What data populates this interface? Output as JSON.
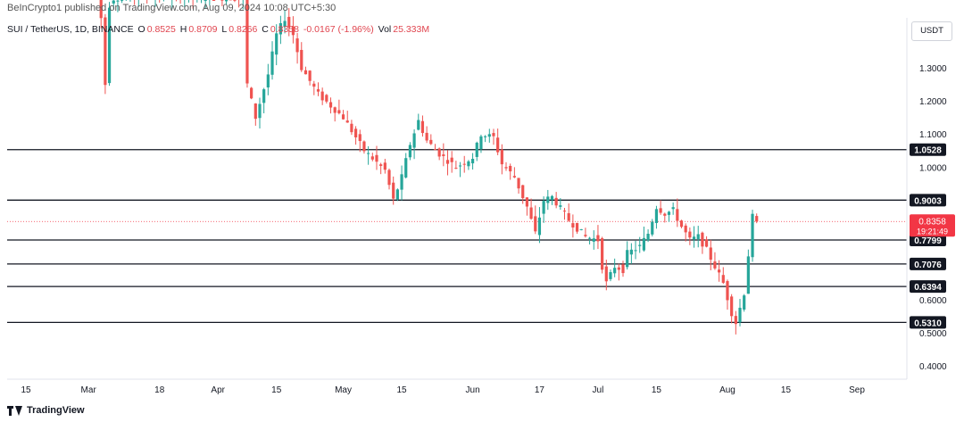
{
  "header": {
    "published_text": "BeInCrypto1 published on TradingView.com, Aug 09, 2024 10:08 UTC+5:30"
  },
  "legend": {
    "symbol": "SUI / TetherUS, 1D, BINANCE",
    "open_label": "O",
    "open": "0.8525",
    "high_label": "H",
    "high": "0.8709",
    "low_label": "L",
    "low": "0.8266",
    "close_label": "C",
    "close": "0.8358",
    "change": "-0.0167 (-1.96%)",
    "volume_label": "Vol",
    "volume": "25.333M"
  },
  "currency": "USDT",
  "footer": {
    "brand": "TradingView"
  },
  "colors": {
    "up": "#26a69a",
    "down": "#ef5350",
    "level": "#131722",
    "current": "#f23645"
  },
  "chart_data": {
    "type": "candlestick",
    "title": "SUI / TetherUS, 1D, BINANCE",
    "ylabel": "USDT",
    "ylim": [
      0.35,
      1.52
    ],
    "y_ticks": [
      "1.3000",
      "1.2000",
      "1.1000",
      "1.0000",
      "0.6000",
      "0.5000",
      "0.4000"
    ],
    "x_ticks": [
      {
        "label": "15",
        "day": 14
      },
      {
        "label": "Mar",
        "day": 29
      },
      {
        "label": "18",
        "day": 46
      },
      {
        "label": "Apr",
        "day": 60
      },
      {
        "label": "15",
        "day": 74
      },
      {
        "label": "May",
        "day": 90
      },
      {
        "label": "15",
        "day": 104
      },
      {
        "label": "Jun",
        "day": 121
      },
      {
        "label": "17",
        "day": 137
      },
      {
        "label": "Jul",
        "day": 151
      },
      {
        "label": "15",
        "day": 165
      },
      {
        "label": "Aug",
        "day": 182
      },
      {
        "label": "15",
        "day": 196
      },
      {
        "label": "Sep",
        "day": 213
      }
    ],
    "levels": [
      {
        "label": "1.0528",
        "value": 1.0528
      },
      {
        "label": "0.9003",
        "value": 0.9003
      },
      {
        "label": "0.7799",
        "value": 0.7799
      },
      {
        "label": "0.7076",
        "value": 0.7076
      },
      {
        "label": "0.6394",
        "value": 0.6394
      },
      {
        "label": "0.5310",
        "value": 0.531
      }
    ],
    "current_price": {
      "label": "0.8358",
      "value": 0.8358,
      "countdown": "19:21:49"
    },
    "series_anchors": [
      {
        "day": 31,
        "close": 1.52
      },
      {
        "day": 32,
        "close": 1.45
      },
      {
        "day": 33,
        "close": 1.25
      },
      {
        "day": 34,
        "close": 1.49
      },
      {
        "day": 35,
        "close": 1.51
      },
      {
        "day": 40,
        "close": 1.52
      },
      {
        "day": 66,
        "close": 1.51
      },
      {
        "day": 67,
        "close": 1.25
      },
      {
        "day": 69,
        "close": 1.15
      },
      {
        "day": 72,
        "close": 1.28
      },
      {
        "day": 74,
        "close": 1.4
      },
      {
        "day": 76,
        "close": 1.45
      },
      {
        "day": 78,
        "close": 1.4
      },
      {
        "day": 80,
        "close": 1.3
      },
      {
        "day": 84,
        "close": 1.22
      },
      {
        "day": 90,
        "close": 1.15
      },
      {
        "day": 95,
        "close": 1.05
      },
      {
        "day": 100,
        "close": 0.99
      },
      {
        "day": 102,
        "close": 0.9
      },
      {
        "day": 104,
        "close": 0.97
      },
      {
        "day": 106,
        "close": 1.07
      },
      {
        "day": 108,
        "close": 1.14
      },
      {
        "day": 110,
        "close": 1.08
      },
      {
        "day": 113,
        "close": 1.04
      },
      {
        "day": 117,
        "close": 1.0
      },
      {
        "day": 121,
        "close": 1.03
      },
      {
        "day": 123,
        "close": 1.1
      },
      {
        "day": 126,
        "close": 1.09
      },
      {
        "day": 128,
        "close": 1.01
      },
      {
        "day": 131,
        "close": 0.97
      },
      {
        "day": 134,
        "close": 0.88
      },
      {
        "day": 136,
        "close": 0.8
      },
      {
        "day": 138,
        "close": 0.9
      },
      {
        "day": 140,
        "close": 0.91
      },
      {
        "day": 144,
        "close": 0.84
      },
      {
        "day": 148,
        "close": 0.79
      },
      {
        "day": 151,
        "close": 0.78
      },
      {
        "day": 152,
        "close": 0.7
      },
      {
        "day": 153,
        "close": 0.65
      },
      {
        "day": 155,
        "close": 0.7
      },
      {
        "day": 157,
        "close": 0.69
      },
      {
        "day": 158,
        "close": 0.74
      },
      {
        "day": 161,
        "close": 0.76
      },
      {
        "day": 163,
        "close": 0.8
      },
      {
        "day": 165,
        "close": 0.88
      },
      {
        "day": 167,
        "close": 0.86
      },
      {
        "day": 169,
        "close": 0.87
      },
      {
        "day": 171,
        "close": 0.82
      },
      {
        "day": 173,
        "close": 0.78
      },
      {
        "day": 175,
        "close": 0.79
      },
      {
        "day": 177,
        "close": 0.75
      },
      {
        "day": 179,
        "close": 0.7
      },
      {
        "day": 181,
        "close": 0.65
      },
      {
        "day": 183,
        "close": 0.56
      },
      {
        "day": 184,
        "close": 0.53
      },
      {
        "day": 186,
        "close": 0.62
      },
      {
        "day": 188,
        "close": 0.85
      },
      {
        "day": 189,
        "close": 0.8358
      }
    ]
  }
}
